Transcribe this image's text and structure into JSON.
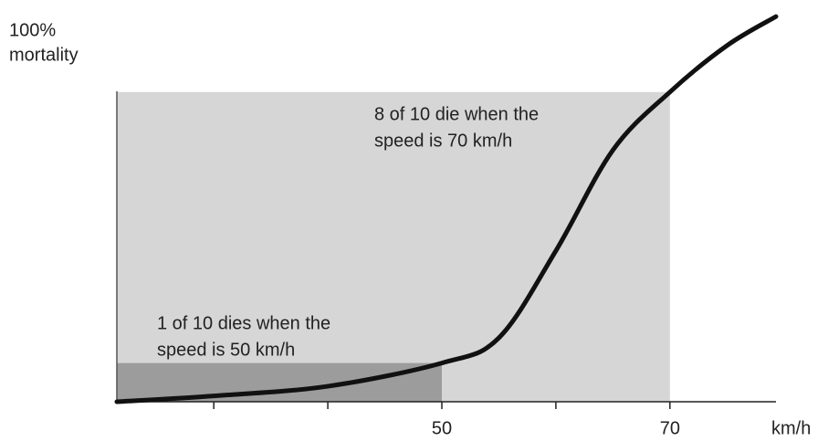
{
  "chart_data": {
    "type": "line",
    "y_label": [
      "100%",
      "mortality"
    ],
    "x_label": "km/h",
    "x": [
      21.5,
      30,
      40,
      50,
      55,
      60,
      65,
      70,
      75,
      79.3
    ],
    "series": [
      {
        "color": "#111111",
        "values": [
          0,
          1.5,
          4,
          10,
          16.5,
          39,
          65,
          80,
          92,
          99.5
        ]
      }
    ],
    "xlim": [
      21.5,
      79.3
    ],
    "ylim": [
      0,
      100
    ],
    "xticks": [
      {
        "value": 30,
        "label": null
      },
      {
        "value": 40,
        "label": null
      },
      50,
      {
        "value": 60,
        "label": null
      },
      70
    ],
    "highlights": [
      {
        "x": 70,
        "y": 80,
        "color": "#d6d6d6"
      },
      {
        "x": 50,
        "y": 10,
        "color": "#9c9c9c"
      }
    ],
    "annotations": [
      {
        "lines": [
          "8 of 10 die when the",
          "speed is 70 km/h"
        ]
      },
      {
        "lines": [
          "1 of 10 dies when the",
          "speed is 50 km/h"
        ]
      }
    ]
  }
}
